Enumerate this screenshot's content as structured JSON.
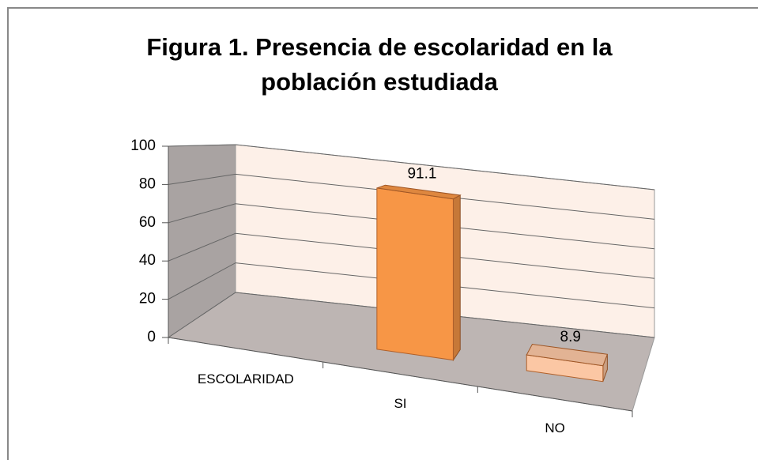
{
  "chart_data": {
    "type": "bar3d",
    "title": "Figura 1. Presencia de escolaridad en la población estudiada",
    "categories": [
      "ESCOLARIDAD",
      "SI",
      "NO"
    ],
    "values": [
      null,
      91.1,
      8.9
    ],
    "colors": [
      null,
      "#f79646",
      "#fbc7a4"
    ],
    "ylim": [
      0,
      100
    ],
    "yticks": [
      0,
      20,
      40,
      60,
      80,
      100
    ],
    "grid": true
  }
}
